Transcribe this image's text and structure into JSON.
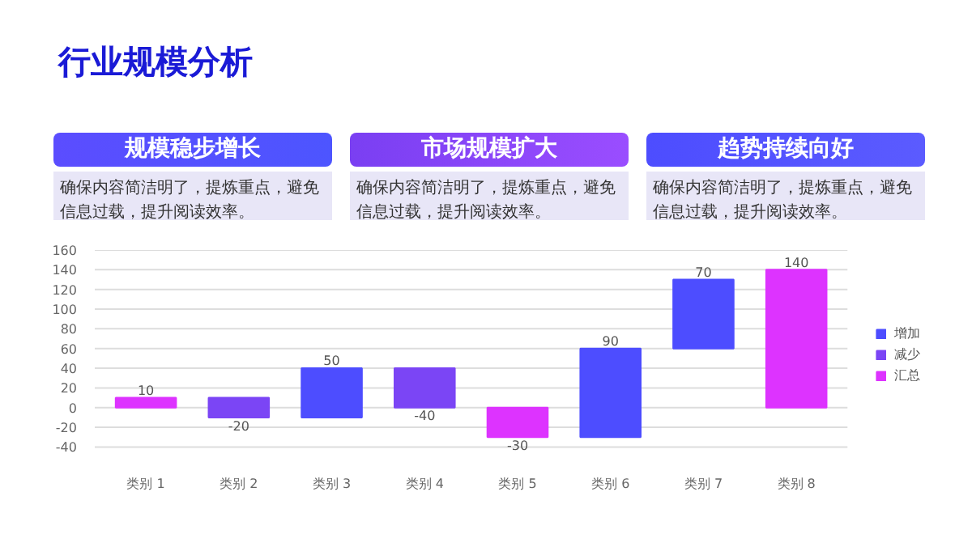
{
  "chart_data": {
    "type": "bar",
    "title": "行业规模分析",
    "annotations": [
      "规模稳步增长",
      "确保内容简洁明了，提炼重点，避免信息过载，提升阅读效率。",
      "市场规模扩大",
      "确保内容简洁明了，提炼重点，避免信息过载，提升阅读效率。",
      "趋势持续向好",
      "确保内容简洁明了，提炼重点，避免信息过载，提升阅读效率。"
    ],
    "categories": [
      "类别 1",
      "类别 2",
      "类别 3",
      "类别 4",
      "类别 5",
      "类别 6",
      "类别 7",
      "类别 8"
    ],
    "series": [
      {
        "name": "增加",
        "color": "#4d4dff",
        "values": [
          null,
          null,
          50,
          null,
          null,
          90,
          70,
          null
        ],
        "base": [
          null,
          null,
          -10,
          null,
          null,
          -30,
          60,
          null
        ]
      },
      {
        "name": "减少",
        "color": "#7b45f5",
        "values": [
          null,
          -20,
          null,
          -40,
          null,
          null,
          null,
          null
        ],
        "base": [
          null,
          10,
          null,
          40,
          null,
          null,
          null,
          null
        ]
      },
      {
        "name": "汇总",
        "color": "#dd33ff",
        "values": [
          10,
          null,
          null,
          null,
          -30,
          null,
          null,
          140
        ],
        "base": [
          0,
          null,
          null,
          null,
          0,
          null,
          null,
          0
        ]
      }
    ],
    "ylim": [
      -40,
      160
    ],
    "yticks": [
      -40,
      -20,
      0,
      20,
      40,
      60,
      80,
      100,
      120,
      140,
      160
    ],
    "grid": "y",
    "legend": "right",
    "data_labels": true
  }
}
